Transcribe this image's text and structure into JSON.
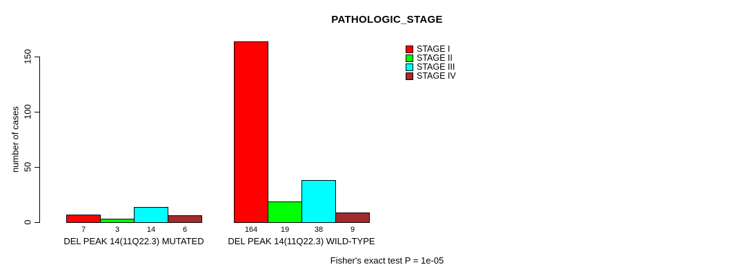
{
  "chart_data": {
    "type": "bar",
    "title": "PATHOLOGIC_STAGE",
    "xlabel": "",
    "ylabel": "number of cases",
    "categories": [
      "DEL PEAK 14(11Q22.3) MUTATED",
      "DEL PEAK 14(11Q22.3) WILD-TYPE"
    ],
    "series": [
      {
        "name": "STAGE I",
        "color": "#ff0000",
        "values": [
          7,
          164
        ]
      },
      {
        "name": "STAGE II",
        "color": "#00ff00",
        "values": [
          3,
          19
        ]
      },
      {
        "name": "STAGE III",
        "color": "#00ffff",
        "values": [
          14,
          38
        ]
      },
      {
        "name": "STAGE IV",
        "color": "#a52a2a",
        "values": [
          6,
          9
        ]
      }
    ],
    "yticks": [
      0,
      50,
      100,
      150
    ],
    "ylim": [
      0,
      164
    ],
    "grid": false,
    "legend_position": "top-right",
    "bar_border_color": "#000000",
    "background_color": "#ffffff",
    "annotation": "Fisher's exact test P = 1e-05"
  }
}
